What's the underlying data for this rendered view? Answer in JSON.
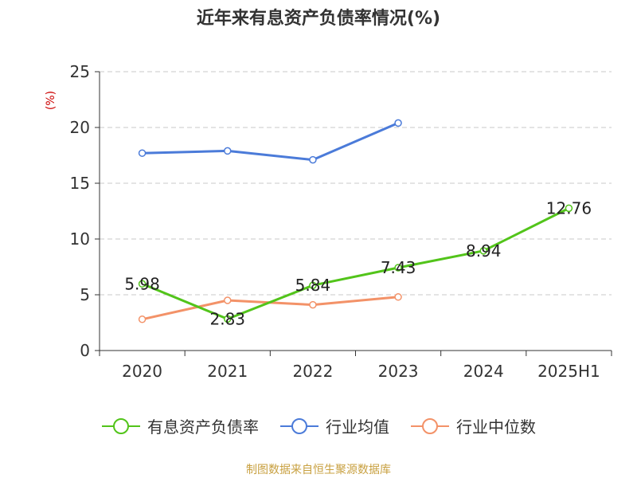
{
  "chart_data": {
    "type": "line",
    "title": "近年来有息资产负债率情况(%)",
    "ylabel": "(%)",
    "xlabel": "",
    "categories": [
      "2020",
      "2021",
      "2022",
      "2023",
      "2024",
      "2025H1"
    ],
    "ylim": [
      0,
      25
    ],
    "yticks": [
      0,
      5,
      10,
      15,
      20,
      25
    ],
    "grid": true,
    "legend_position": "bottom",
    "series": [
      {
        "name": "有息资产负债率",
        "color": "#52c41a",
        "values": [
          5.98,
          2.83,
          5.84,
          7.43,
          8.94,
          12.76
        ],
        "labels": [
          "5.98",
          "2.83",
          "5.84",
          "7.43",
          "8.94",
          "12.76"
        ]
      },
      {
        "name": "行业均值",
        "color": "#4b7bd9",
        "values": [
          17.7,
          17.9,
          17.1,
          20.4,
          null,
          null
        ]
      },
      {
        "name": "行业中位数",
        "color": "#f39268",
        "values": [
          2.8,
          4.5,
          4.1,
          4.8,
          null,
          null
        ]
      }
    ]
  },
  "ylabel_color": "#cc0000",
  "source": {
    "text": "制图数据来自恒生聚源数据库",
    "color": "#c8a040"
  }
}
